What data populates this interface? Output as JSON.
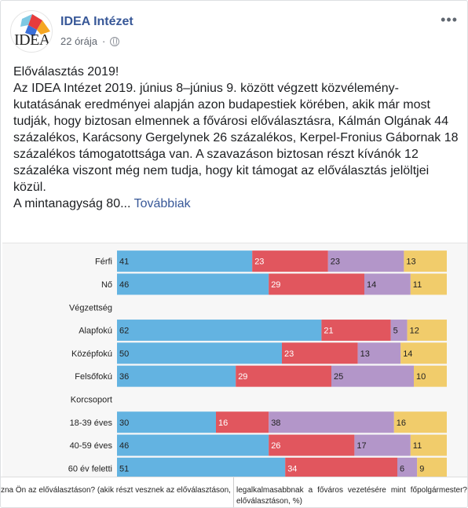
{
  "header": {
    "page_name": "IDEA Intézet",
    "time": "22 órája",
    "avatar_text": "IDEA",
    "menu_icon": "more-dots-icon"
  },
  "body": {
    "line1": "Előválasztás 2019!",
    "line2": "Az IDEA Intézet 2019. június 8–június 9. között végzett közvélemény-kutatásának eredményei alapján azon budapestiek körében, akik már most tudják, hogy biztosan elmennek a fővárosi előválasztásra, Kálmán Olgának 44 százalékos, Karácsony Gergelynek 26 százalékos, Kerpel-Fronius Gábornak 18 százalékos támogatottsága van. A szavazáson biztosan részt kívánók 12 százaléka viszont még nem tudja, hogy kit támogat az előválasztás jelöltjei közül.",
    "line3": "A mintanagyság 80...",
    "more": "Továbbiak"
  },
  "colors": {
    "blue": "#63b3e1",
    "red": "#e1565e",
    "purple": "#b396c9",
    "yellow": "#f1cc6b"
  },
  "chart_data": {
    "type": "bar",
    "stacked": true,
    "orientation": "horizontal",
    "rows": [
      {
        "label": "Férfi",
        "values": [
          41,
          23,
          23,
          13
        ]
      },
      {
        "label": "Nő",
        "values": [
          46,
          29,
          14,
          11
        ]
      },
      {
        "label": "Végzettség",
        "heading": true
      },
      {
        "label": "Alapfokú",
        "values": [
          62,
          21,
          5,
          12
        ]
      },
      {
        "label": "Középfokú",
        "values": [
          50,
          23,
          13,
          14
        ]
      },
      {
        "label": "Felsőfokú",
        "values": [
          36,
          29,
          25,
          10
        ]
      },
      {
        "label": "Korcsoport",
        "heading": true
      },
      {
        "label": "18-39 éves",
        "values": [
          30,
          16,
          38,
          16
        ]
      },
      {
        "label": "40-59 éves",
        "values": [
          46,
          26,
          17,
          11
        ]
      },
      {
        "label": "60 év feletti",
        "values": [
          51,
          34,
          6,
          9
        ]
      }
    ],
    "xlim": [
      0,
      100
    ]
  },
  "captions": {
    "left": "zna Ön az előválasztáson? (akik részt vesznek az előválasztáson, %)",
    "right": "legalkalmasabbnak a főváros vezetésére mint főpolgármester? előválasztáson, %)"
  }
}
